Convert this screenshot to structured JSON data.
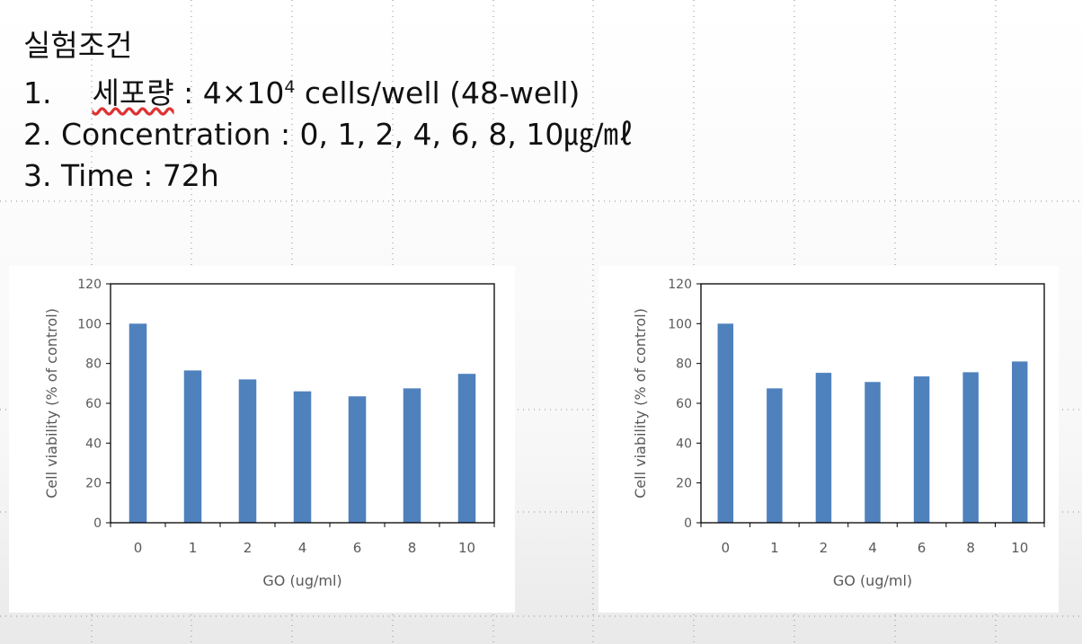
{
  "header": {
    "heading": "실험조건",
    "items": [
      {
        "number": "1.",
        "label": "세포량",
        "text": " : 4×10",
        "superscript": "4",
        "suffix": " cells/well (48-well)"
      },
      {
        "number": "2.",
        "text": "Concentration : 0, 1, 2, 4, 6, 8, 10㎍/㎖"
      },
      {
        "number": "3.",
        "text": "Time : 72h"
      }
    ]
  },
  "chart_data": [
    {
      "type": "bar",
      "categories": [
        "0",
        "1",
        "2",
        "4",
        "6",
        "8",
        "10"
      ],
      "values": [
        100,
        76.5,
        72,
        66,
        63.5,
        67.5,
        74.8
      ],
      "xlabel": "GO (ug/ml)",
      "ylabel": "Cell viability (% of control)",
      "ylim": [
        0,
        120
      ],
      "yticks": [
        0,
        20,
        40,
        60,
        80,
        100,
        120
      ],
      "bar_color": "#4f81bd"
    },
    {
      "type": "bar",
      "categories": [
        "0",
        "1",
        "2",
        "4",
        "6",
        "8",
        "10"
      ],
      "values": [
        100,
        67.5,
        75.3,
        70.7,
        73.5,
        75.6,
        81
      ],
      "xlabel": "GO (ug/ml)",
      "ylabel": "Cell viability (% of control)",
      "ylim": [
        0,
        120
      ],
      "yticks": [
        0,
        20,
        40,
        60,
        80,
        100,
        120
      ],
      "bar_color": "#4f81bd"
    }
  ]
}
